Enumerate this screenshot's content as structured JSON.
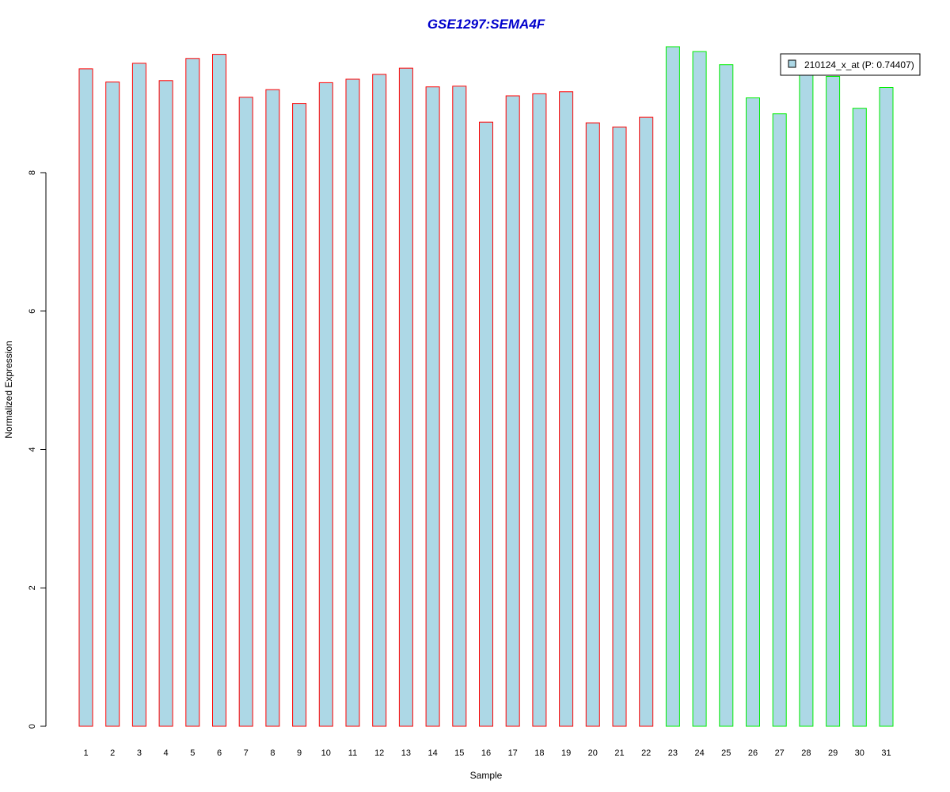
{
  "chart_data": {
    "type": "bar",
    "title": "GSE1297:SEMA4F",
    "xlabel": "Sample",
    "ylabel": "Normalized Expression",
    "categories": [
      "1",
      "2",
      "3",
      "4",
      "5",
      "6",
      "7",
      "8",
      "9",
      "10",
      "11",
      "12",
      "13",
      "14",
      "15",
      "16",
      "17",
      "18",
      "19",
      "20",
      "21",
      "22",
      "23",
      "24",
      "25",
      "26",
      "27",
      "28",
      "29",
      "30",
      "31"
    ],
    "series": [
      {
        "name": "210124_x_at (P: 0.74407)",
        "values": [
          9.5,
          9.31,
          9.58,
          9.33,
          9.65,
          9.71,
          9.09,
          9.2,
          9.0,
          9.3,
          9.35,
          9.42,
          9.51,
          9.24,
          9.25,
          8.73,
          9.11,
          9.14,
          9.17,
          8.72,
          8.66,
          8.8,
          9.82,
          9.75,
          9.56,
          9.08,
          8.85,
          9.47,
          9.39,
          8.93,
          9.23
        ]
      }
    ],
    "groups": [
      {
        "from": 1,
        "to": 22,
        "border_color": "#ff0000"
      },
      {
        "from": 23,
        "to": 31,
        "border_color": "#00ee00"
      }
    ],
    "bar_fill": "#add8e6",
    "title_color": "#0000cc",
    "yticks": [
      0,
      2,
      4,
      6,
      8
    ],
    "ylim": [
      0,
      10.2
    ],
    "grid": false,
    "legend_position": "top-right"
  }
}
